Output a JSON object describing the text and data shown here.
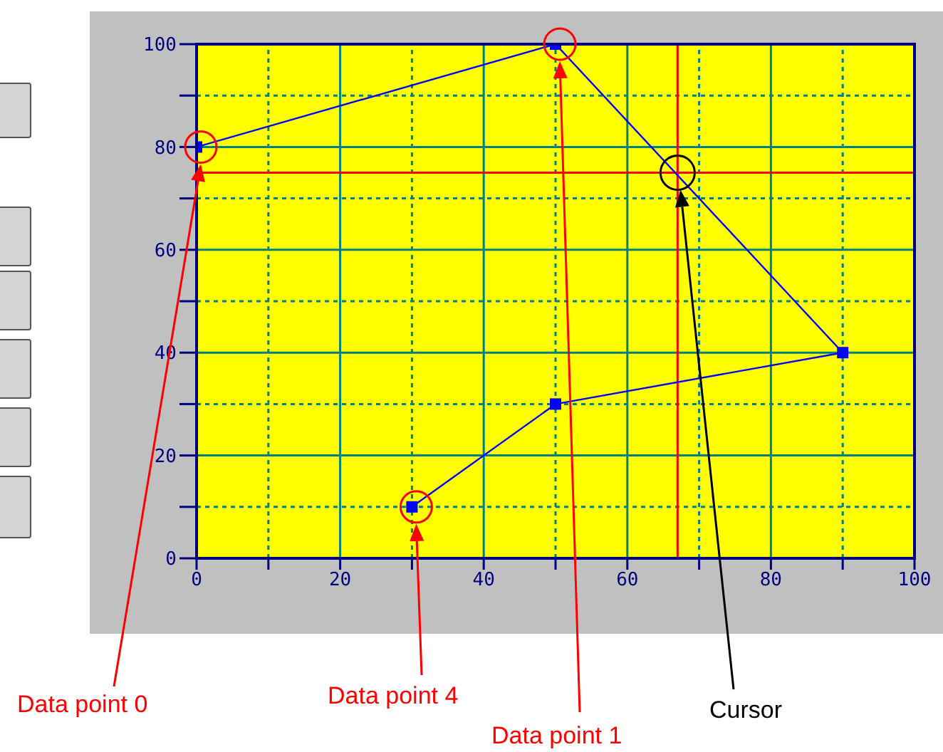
{
  "chart_data": {
    "type": "line",
    "x": [
      0,
      50,
      90,
      50,
      30
    ],
    "series": [
      {
        "color": "#0000ff",
        "values": [
          80,
          100,
          40,
          30,
          10
        ]
      }
    ],
    "xlim": [
      0,
      100
    ],
    "ylim": [
      0,
      100
    ],
    "xticks": [
      0,
      {
        "value": 10,
        "label": null
      },
      20,
      {
        "value": 30,
        "label": null
      },
      40,
      {
        "value": 50,
        "label": null
      },
      60,
      {
        "value": 70,
        "label": null
      },
      80,
      {
        "value": 90,
        "label": null
      },
      100
    ],
    "yticks": [
      0,
      {
        "value": 10,
        "label": null
      },
      20,
      {
        "value": 30,
        "label": null
      },
      40,
      {
        "value": 50,
        "label": null
      },
      60,
      {
        "value": 70,
        "label": null
      },
      80,
      {
        "value": 90,
        "label": null
      },
      100
    ],
    "grid": true,
    "marker": "square",
    "line_style": "solid",
    "ref_lines": [
      {
        "axis": "x",
        "value": 67,
        "label": "Cursor",
        "color": "#ff0000"
      },
      {
        "axis": "y",
        "value": 75,
        "color": "#ff0000"
      }
    ],
    "annotations": [
      "Data point 0",
      "Data point 4",
      "Data point 1"
    ]
  }
}
